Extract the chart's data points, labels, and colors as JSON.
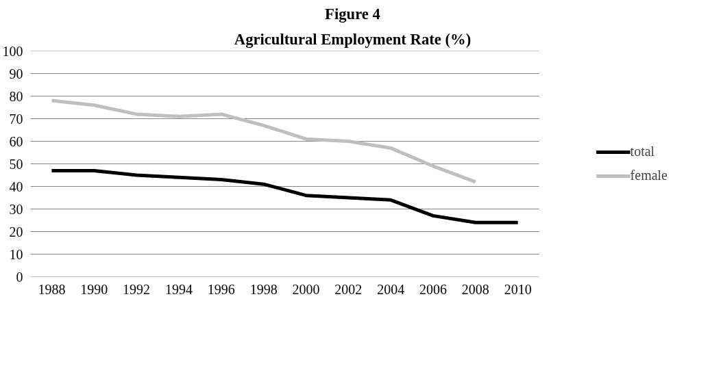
{
  "chart_data": {
    "type": "line",
    "title": "Figure 4",
    "subtitle": "Agricultural Employment Rate (%)",
    "categories": [
      "1988",
      "1990",
      "1992",
      "1994",
      "1996",
      "1998",
      "2000",
      "2002",
      "2004",
      "2006",
      "2008",
      "2010"
    ],
    "series": [
      {
        "name": "total",
        "color": "#000000",
        "values": [
          47,
          47,
          45,
          44,
          43,
          41,
          36,
          35,
          34,
          27,
          24,
          24
        ]
      },
      {
        "name": "female",
        "color": "#bfbfbf",
        "values": [
          78,
          76,
          72,
          71,
          72,
          67,
          61,
          60,
          57,
          49,
          42,
          null
        ]
      }
    ],
    "ylim": [
      0,
      100
    ],
    "yticks": [
      0,
      10,
      20,
      30,
      40,
      50,
      60,
      70,
      80,
      90,
      100
    ],
    "grid": "y",
    "legend": "right",
    "marker": "none",
    "line_style": "solid"
  }
}
